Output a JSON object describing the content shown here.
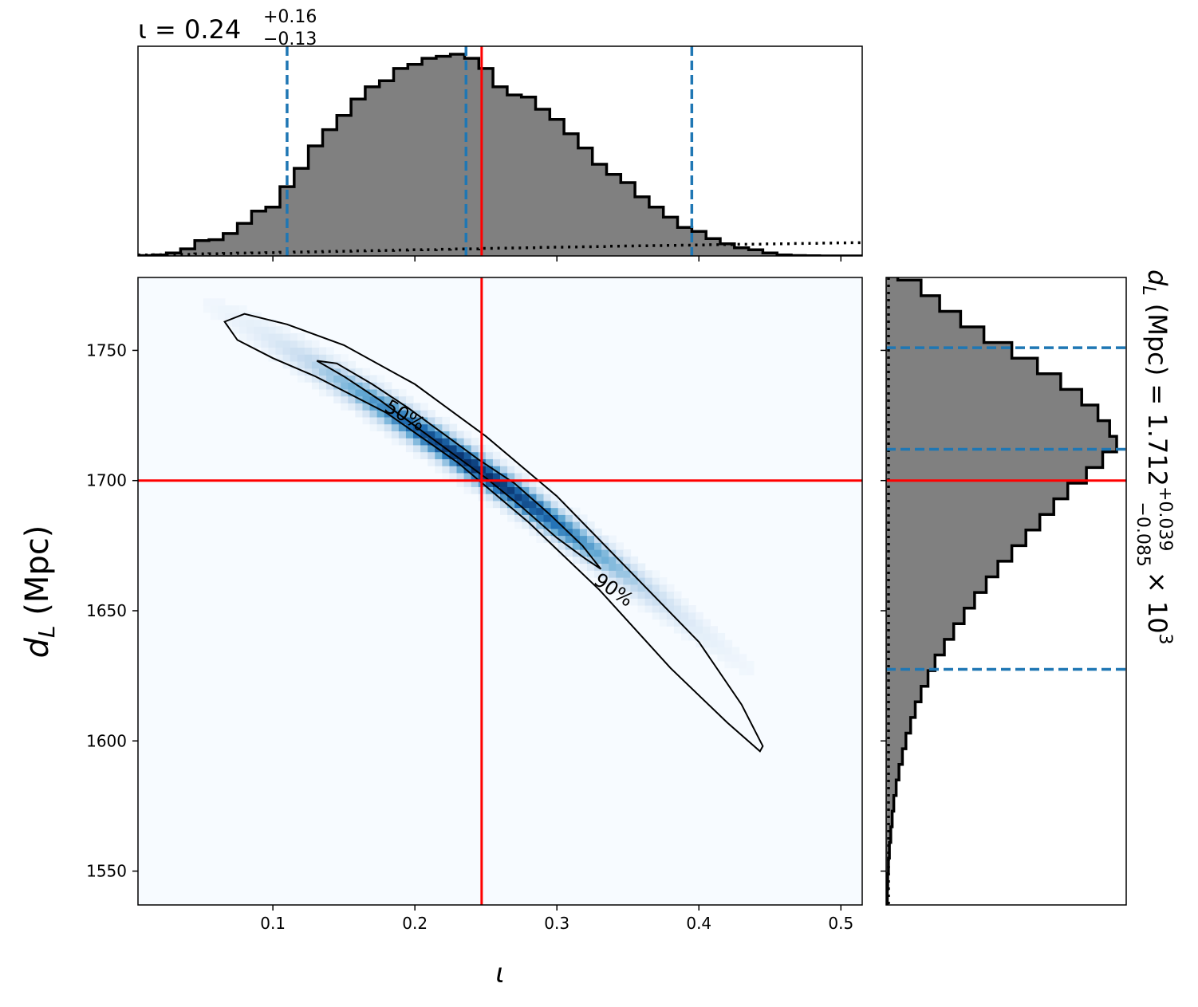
{
  "chart_data": {
    "type": "corner",
    "top_title": {
      "symbol": "ι",
      "median": "0.24",
      "plus": "+0.16",
      "minus": "−0.13"
    },
    "right_title": {
      "symbol": "d",
      "subscript": "L",
      "unit": "(Mpc)",
      "median": "1.712",
      "plus": "+0.039",
      "minus": "−0.085",
      "exponent_base": "× 10",
      "exponent": "3"
    },
    "x_axis": {
      "label": "ι",
      "range": [
        0.005,
        0.515
      ],
      "ticks": [
        0.1,
        0.2,
        0.3,
        0.4,
        0.5
      ],
      "tick_labels": [
        "0.1",
        "0.2",
        "0.3",
        "0.4",
        "0.5"
      ]
    },
    "y_axis": {
      "label_symbol": "d",
      "label_subscript": "L",
      "label_unit": "(Mpc)",
      "range": [
        1537,
        1778
      ],
      "ticks": [
        1550,
        1600,
        1650,
        1700,
        1750
      ],
      "tick_labels": [
        "1550",
        "1600",
        "1650",
        "1700",
        "1750"
      ]
    },
    "injected": {
      "iota": 0.247,
      "dL": 1700,
      "color": "#ff0000"
    },
    "quantile_lines": {
      "iota": [
        0.11,
        0.236,
        0.395
      ],
      "dL": [
        1627.5,
        1712,
        1751
      ],
      "color": "#1f77b4"
    },
    "iota_hist": {
      "bin_start": 0.005,
      "bin_width": 0.01,
      "counts": [
        0.2,
        0.5,
        1.5,
        3.5,
        7.5,
        8.0,
        11.0,
        16.0,
        22.0,
        24.0,
        34.0,
        43.0,
        54.0,
        62.0,
        69.0,
        77.0,
        83.0,
        86.0,
        92.0,
        94.0,
        97.0,
        98.0,
        99.0,
        97.0,
        92.0,
        83.0,
        79.0,
        78.0,
        72.0,
        67.0,
        60.0,
        53.0,
        45.0,
        40.0,
        36.0,
        29.0,
        24.0,
        19.0,
        14.0,
        12.0,
        8.5,
        6.0,
        4.0,
        3.0,
        1.5,
        0.5,
        0.2,
        0.1,
        0.0,
        0.0,
        0.0
      ],
      "prior_counts": [
        0.5,
        0.6,
        0.7,
        0.8,
        1.0,
        1.1,
        1.2,
        1.4,
        1.5,
        1.6,
        1.8,
        1.9,
        2.0,
        2.2,
        2.3,
        2.5,
        2.6,
        2.7,
        2.9,
        3.0,
        3.1,
        3.3,
        3.4,
        3.5,
        3.7,
        3.8,
        3.9,
        4.0,
        4.2,
        4.3,
        4.4,
        4.5,
        4.6,
        4.8,
        4.9,
        5.0,
        5.1,
        5.2,
        5.3,
        5.4,
        5.5,
        5.6,
        5.7,
        5.8,
        5.9,
        6.0,
        6.1,
        6.2,
        6.3,
        6.4,
        6.5
      ]
    },
    "dL_hist": {
      "bin_start": 1537,
      "bin_width": 6,
      "counts": [
        0.5,
        0.7,
        1.0,
        1.4,
        2.0,
        2.6,
        3.3,
        4.3,
        5.5,
        7.0,
        8.5,
        10.5,
        12.5,
        15.0,
        18.0,
        21.0,
        25.0,
        29.0,
        33.5,
        38.0,
        43.0,
        48.0,
        54.0,
        60.0,
        66.0,
        72.0,
        78.0,
        86.0,
        93.0,
        99.0,
        96.0,
        91.0,
        84.0,
        75.0,
        65.0,
        54.0,
        42.0,
        32.0,
        23.0,
        15.0,
        5.0
      ]
    },
    "contours": {
      "levels": [
        "50%",
        "90%"
      ],
      "inner": [
        [
          0.131,
          1746
        ],
        [
          0.15,
          1740
        ],
        [
          0.175,
          1731
        ],
        [
          0.2,
          1721
        ],
        [
          0.225,
          1711
        ],
        [
          0.25,
          1701
        ],
        [
          0.275,
          1690
        ],
        [
          0.3,
          1678
        ],
        [
          0.32,
          1670
        ],
        [
          0.331,
          1666
        ],
        [
          0.318,
          1675
        ],
        [
          0.295,
          1687
        ],
        [
          0.27,
          1699
        ],
        [
          0.245,
          1708
        ],
        [
          0.22,
          1718
        ],
        [
          0.195,
          1728
        ],
        [
          0.17,
          1737
        ],
        [
          0.145,
          1745
        ]
      ],
      "outer": [
        [
          0.066,
          1761
        ],
        [
          0.08,
          1764
        ],
        [
          0.11,
          1760
        ],
        [
          0.15,
          1752
        ],
        [
          0.2,
          1737
        ],
        [
          0.25,
          1717
        ],
        [
          0.3,
          1694
        ],
        [
          0.35,
          1666
        ],
        [
          0.4,
          1638
        ],
        [
          0.43,
          1614
        ],
        [
          0.445,
          1598
        ],
        [
          0.443,
          1596
        ],
        [
          0.42,
          1607
        ],
        [
          0.38,
          1628
        ],
        [
          0.33,
          1658
        ],
        [
          0.28,
          1684
        ],
        [
          0.23,
          1707
        ],
        [
          0.18,
          1726
        ],
        [
          0.13,
          1740
        ],
        [
          0.1,
          1747
        ],
        [
          0.075,
          1754
        ]
      ]
    }
  }
}
